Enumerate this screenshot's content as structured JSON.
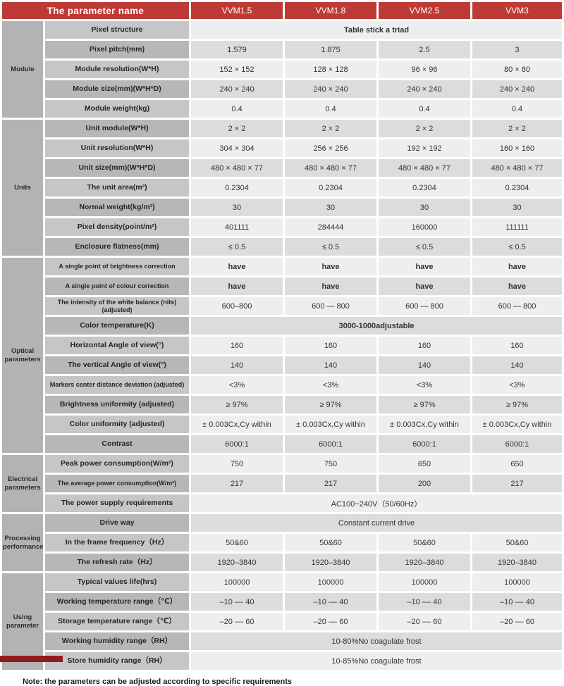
{
  "colors": {
    "header_red": "#BE3B35",
    "bottom_bar_red": "#8E1E1E",
    "group_gray": "#B1B3B5",
    "param_light": "#C5C6C8",
    "param_dark": "#B6B7B9",
    "value_light": "#EDEEEF",
    "value_dark": "#DBDCDD"
  },
  "note": "Note: the parameters can be adjusted according to specific requirements",
  "table": {
    "header": {
      "param_col_title": "The parameter name",
      "models": [
        "VVM1.5",
        "VVM1.8",
        "VVM2.5",
        "VVM3"
      ]
    },
    "groups": [
      {
        "id": "module",
        "label": "Module",
        "rows": [
          {
            "label": "Pixel structure",
            "span": "Table stick a triad",
            "strong": true
          },
          {
            "label": "Pixel pitch(mm)",
            "values": [
              "1.579",
              "1.875",
              "2.5",
              "3"
            ]
          },
          {
            "label": "Module resolution(W*H)",
            "values": [
              "152 × 152",
              "128 × 128",
              "96 × 96",
              "80 × 80"
            ]
          },
          {
            "label": "Module size(mm)(W*H*D)",
            "values": [
              "240 × 240",
              "240 × 240",
              "240 × 240",
              "240 × 240"
            ]
          },
          {
            "label": "Module weight(kg)",
            "values": [
              "0.4",
              "0.4",
              "0.4",
              "0.4"
            ]
          }
        ]
      },
      {
        "id": "units",
        "label": "Units",
        "rows": [
          {
            "label": "Unit module(W*H)",
            "values": [
              "2 × 2",
              "2 × 2",
              "2 × 2",
              "2 × 2"
            ]
          },
          {
            "label": "Unit resolution(W*H)",
            "values": [
              "304 × 304",
              "256 × 256",
              "192 × 192",
              "160 × 160"
            ]
          },
          {
            "label": "Unit size(mm)(W*H*D)",
            "values": [
              "480 × 480 × 77",
              "480 × 480 × 77",
              "480 × 480 × 77",
              "480 × 480 × 77"
            ]
          },
          {
            "label": "The unit area(m²)",
            "values": [
              "0.2304",
              "0.2304",
              "0.2304",
              "0.2304"
            ]
          },
          {
            "label": "Normal weight(kg/m²)",
            "values": [
              "30",
              "30",
              "30",
              "30"
            ]
          },
          {
            "label": "Pixel density(point/m²)",
            "values": [
              "401111",
              "284444",
              "160000",
              "111111"
            ]
          },
          {
            "label": "Enclosure flatness(mm)",
            "values": [
              "≤ 0.5",
              "≤ 0.5",
              "≤ 0.5",
              "≤ 0.5"
            ]
          }
        ]
      },
      {
        "id": "optical-parameters",
        "label": "Optical parameters",
        "rows": [
          {
            "label": "A single point of brightness correction",
            "values": [
              "have",
              "have",
              "have",
              "have"
            ],
            "strong": true
          },
          {
            "label": "A single point of colour correction",
            "values": [
              "have",
              "have",
              "have",
              "have"
            ],
            "strong": true
          },
          {
            "label": "The intensity of the white balance (nits) (adjusted)",
            "values": [
              "600–800",
              "600 — 800",
              "600 — 800",
              "600 — 800"
            ]
          },
          {
            "label": "Color temperature(K)",
            "span": "3000-1000adjustable",
            "strong": true
          },
          {
            "label": "Horizontal Angle of view(°)",
            "values": [
              "160",
              "160",
              "160",
              "160"
            ]
          },
          {
            "label": "The vertical Angle of view(°)",
            "values": [
              "140",
              "140",
              "140",
              "140"
            ]
          },
          {
            "label": "Markers center distance deviation (adjusted)",
            "values": [
              "<3%",
              "<3%",
              "<3%",
              "<3%"
            ]
          },
          {
            "label": "Brightness uniformity (adjusted)",
            "values": [
              "≥ 97%",
              "≥ 97%",
              "≥ 97%",
              "≥ 97%"
            ]
          },
          {
            "label": "Color uniformity (adjusted)",
            "values": [
              "± 0.003Cx,Cy within",
              "± 0.003Cx,Cy within",
              "± 0.003Cx,Cy within",
              "± 0.003Cx,Cy within"
            ]
          },
          {
            "label": "Contrast",
            "values": [
              "6000:1",
              "6000:1",
              "6000:1",
              "6000:1"
            ]
          }
        ]
      },
      {
        "id": "electrical-parameters",
        "label": "Electrical parameters",
        "rows": [
          {
            "label": "Peak power consumption(W/m²)",
            "values": [
              "750",
              "750",
              "650",
              "650"
            ]
          },
          {
            "label": "The average power consumption(W/m²)",
            "values": [
              "217",
              "217",
              "200",
              "217"
            ]
          },
          {
            "label": "The power supply requirements",
            "span": "AC100~240V（50/60Hz）"
          }
        ]
      },
      {
        "id": "processing-performance",
        "label": "Processing performance",
        "rows": [
          {
            "label": "Drive way",
            "span": "Constant current drive"
          },
          {
            "label": "In the frame frequency（Hz）",
            "values": [
              "50&60",
              "50&60",
              "50&60",
              "50&60"
            ]
          },
          {
            "label": "The refresh rate（Hz）",
            "values": [
              "1920–3840",
              "1920–3840",
              "1920–3840",
              "1920–3840"
            ]
          }
        ]
      },
      {
        "id": "using-parameter",
        "label": "Using parameter",
        "rows": [
          {
            "label": "Typical values life(hrs)",
            "values": [
              "100000",
              "100000",
              "100000",
              "100000"
            ]
          },
          {
            "label": "Working temperature range（℃）",
            "values": [
              "–10 –– 40",
              "–10 –– 40",
              "–10 –– 40",
              "–10 –– 40"
            ]
          },
          {
            "label": "Storage temperature range（℃）",
            "values": [
              "–20 –– 60",
              "–20 –– 60",
              "–20 –– 60",
              "–20 –– 60"
            ]
          },
          {
            "label": "Working humidity range（RH）",
            "span": "10-80%No coagulate frost"
          },
          {
            "label": "Store humidity range（RH）",
            "span": "10-85%No coagulate frost"
          }
        ]
      }
    ]
  }
}
